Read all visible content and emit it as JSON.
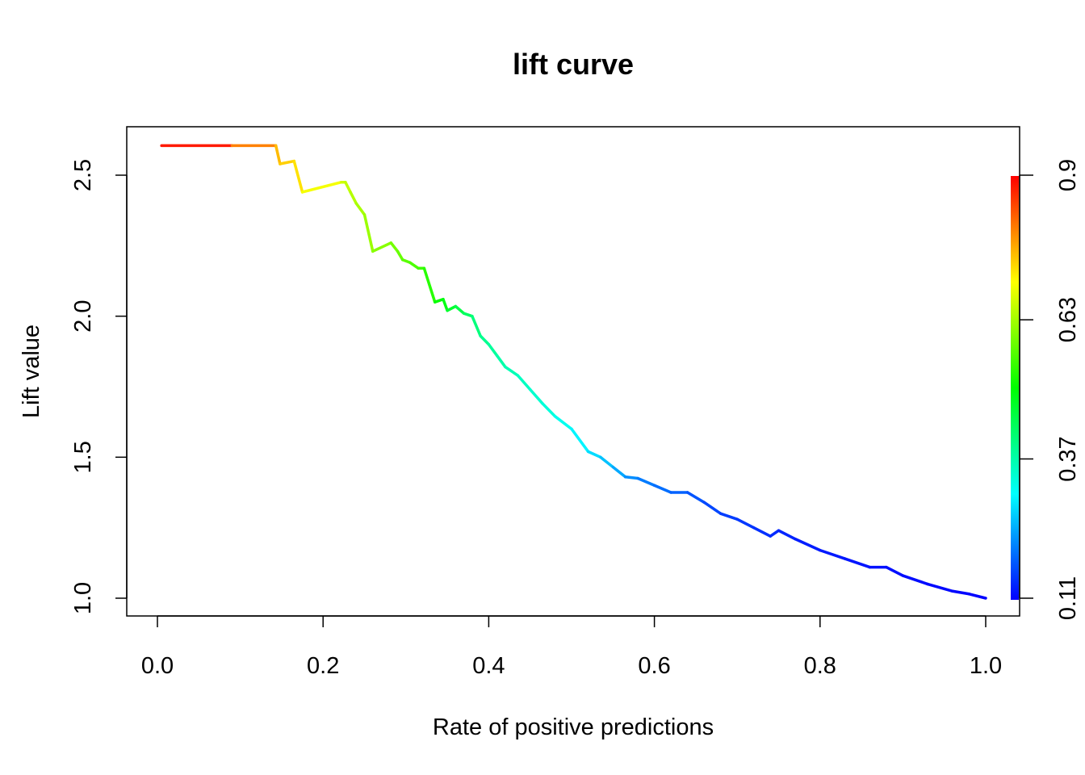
{
  "chart_data": {
    "type": "line",
    "title": "lift curve",
    "xlabel": "Rate of positive predictions",
    "ylabel": "Lift value",
    "xlim": [
      0.0,
      1.0
    ],
    "ylim": [
      1.0,
      2.6
    ],
    "x_ticks": [
      "0.0",
      "0.2",
      "0.4",
      "0.6",
      "0.8",
      "1.0"
    ],
    "y_ticks": [
      "1.0",
      "1.5",
      "2.0",
      "2.5"
    ],
    "colorbar": {
      "ticks": [
        "0.11",
        "0.37",
        "0.63",
        "0.9"
      ],
      "range": [
        0.11,
        0.9
      ],
      "colors": [
        "#0000ff",
        "#00ffff",
        "#00ff00",
        "#ffff00",
        "#ff0000"
      ]
    },
    "grid": false,
    "legend": "none",
    "series": [
      {
        "values": [
          [
            0.005,
            2.605,
            0.92
          ],
          [
            0.09,
            2.605,
            0.84
          ],
          [
            0.143,
            2.605,
            0.76
          ],
          [
            0.148,
            2.54,
            0.75
          ],
          [
            0.165,
            2.55,
            0.73
          ],
          [
            0.175,
            2.44,
            0.72
          ],
          [
            0.222,
            2.475,
            0.67
          ],
          [
            0.227,
            2.475,
            0.66
          ],
          [
            0.233,
            2.44,
            0.65
          ],
          [
            0.24,
            2.4,
            0.64
          ],
          [
            0.25,
            2.36,
            0.63
          ],
          [
            0.26,
            2.23,
            0.62
          ],
          [
            0.282,
            2.26,
            0.6
          ],
          [
            0.29,
            2.23,
            0.59
          ],
          [
            0.296,
            2.2,
            0.58
          ],
          [
            0.305,
            2.19,
            0.57
          ],
          [
            0.315,
            2.17,
            0.56
          ],
          [
            0.322,
            2.17,
            0.55
          ],
          [
            0.335,
            2.05,
            0.52
          ],
          [
            0.345,
            2.06,
            0.5
          ],
          [
            0.35,
            2.02,
            0.48
          ],
          [
            0.36,
            2.035,
            0.46
          ],
          [
            0.37,
            2.01,
            0.44
          ],
          [
            0.38,
            2.0,
            0.42
          ],
          [
            0.39,
            1.93,
            0.4
          ],
          [
            0.4,
            1.9,
            0.39
          ],
          [
            0.41,
            1.86,
            0.38
          ],
          [
            0.42,
            1.82,
            0.37
          ],
          [
            0.435,
            1.79,
            0.36
          ],
          [
            0.45,
            1.74,
            0.35
          ],
          [
            0.465,
            1.69,
            0.34
          ],
          [
            0.48,
            1.645,
            0.33
          ],
          [
            0.5,
            1.6,
            0.31
          ],
          [
            0.52,
            1.52,
            0.29
          ],
          [
            0.535,
            1.5,
            0.27
          ],
          [
            0.55,
            1.465,
            0.25
          ],
          [
            0.565,
            1.43,
            0.23
          ],
          [
            0.58,
            1.425,
            0.21
          ],
          [
            0.6,
            1.4,
            0.2
          ],
          [
            0.62,
            1.375,
            0.19
          ],
          [
            0.64,
            1.375,
            0.18
          ],
          [
            0.66,
            1.34,
            0.17
          ],
          [
            0.68,
            1.3,
            0.16
          ],
          [
            0.7,
            1.28,
            0.155
          ],
          [
            0.72,
            1.25,
            0.15
          ],
          [
            0.74,
            1.22,
            0.145
          ],
          [
            0.75,
            1.24,
            0.14
          ],
          [
            0.77,
            1.21,
            0.135
          ],
          [
            0.8,
            1.17,
            0.13
          ],
          [
            0.83,
            1.14,
            0.128
          ],
          [
            0.86,
            1.11,
            0.125
          ],
          [
            0.88,
            1.11,
            0.122
          ],
          [
            0.9,
            1.08,
            0.12
          ],
          [
            0.93,
            1.05,
            0.118
          ],
          [
            0.96,
            1.025,
            0.115
          ],
          [
            0.98,
            1.015,
            0.112
          ],
          [
            1.0,
            1.0,
            0.11
          ]
        ]
      }
    ]
  }
}
